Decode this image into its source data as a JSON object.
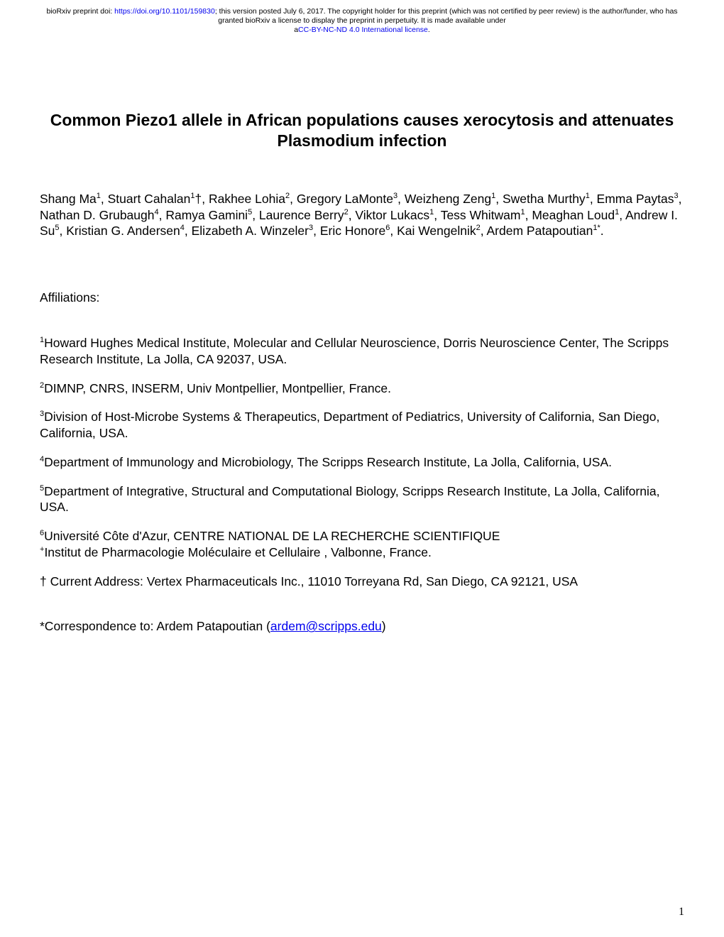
{
  "header": {
    "prefix": "bioRxiv preprint doi: ",
    "doi_url": "https://doi.org/10.1101/159830",
    "middle": "; this version posted July 6, 2017. The copyright holder for this preprint (which was not certified by peer review) is the author/funder, who has granted bioRxiv a license to display the preprint in perpetuity. It is made available under ",
    "license_prefix": "a",
    "license_text": "CC-BY-NC-ND 4.0 International license",
    "license_suffix": "."
  },
  "title": "Common Piezo1 allele in African populations causes xerocytosis and attenuates Plasmodium infection",
  "authors_html": "Shang Ma<sup>1</sup>, Stuart Cahalan<sup>1</sup>†, Rakhee Lohia<sup>2</sup>, Gregory LaMonte<sup>3</sup>, Weizheng Zeng<sup>1</sup>, Swetha Murthy<sup>1</sup>, Emma Paytas<sup>3</sup>, Nathan D. Grubaugh<sup>4</sup>, Ramya Gamini<sup>5</sup>, Laurence Berry<sup>2</sup>, Viktor Lukacs<sup>1</sup>, Tess Whitwam<sup>1</sup>, Meaghan Loud<sup>1</sup>, Andrew I. Su<sup>5</sup>, Kristian G. Andersen<sup>4</sup>, Elizabeth A. Winzeler<sup>3</sup>, Eric Honore<sup>6</sup>, Kai Wengelnik<sup>2</sup>, Ardem Patapoutian<sup>1*</sup>.",
  "affiliations_label": "Affiliations:",
  "affiliations": [
    "<sup>1</sup>Howard Hughes Medical Institute, Molecular and Cellular Neuroscience, Dorris Neuroscience Center, The Scripps Research Institute, La Jolla, CA 92037, USA.",
    "<sup>2</sup>DIMNP, CNRS, INSERM, Univ Montpellier, Montpellier, France.",
    "<sup>3</sup>Division of Host-Microbe Systems & Therapeutics, Department of Pediatrics, University of California, San Diego, California, USA.",
    "<sup>4</sup>Department of Immunology and Microbiology, The Scripps Research Institute, La Jolla, California, USA.",
    "<sup>5</sup>Department of Integrative, Structural and Computational Biology, Scripps Research Institute, La Jolla, California, USA.",
    "<sup>6</sup>Université Côte d'Azur, CENTRE NATIONAL DE LA RECHERCHE SCIENTIFIQUE",
    "<sup>+</sup>Institut de Pharmacologie Moléculaire et Cellulaire , Valbonne, France."
  ],
  "current_address": "† Current Address: Vertex Pharmaceuticals Inc., 11010 Torreyana Rd, San Diego, CA 92121, USA",
  "correspondence_prefix": "*Correspondence to: Ardem Patapoutian (",
  "correspondence_email": "ardem@scripps.edu",
  "correspondence_suffix": ")",
  "page_number": "1",
  "colors": {
    "link": "#0000ee",
    "text": "#000000",
    "background": "#ffffff"
  }
}
